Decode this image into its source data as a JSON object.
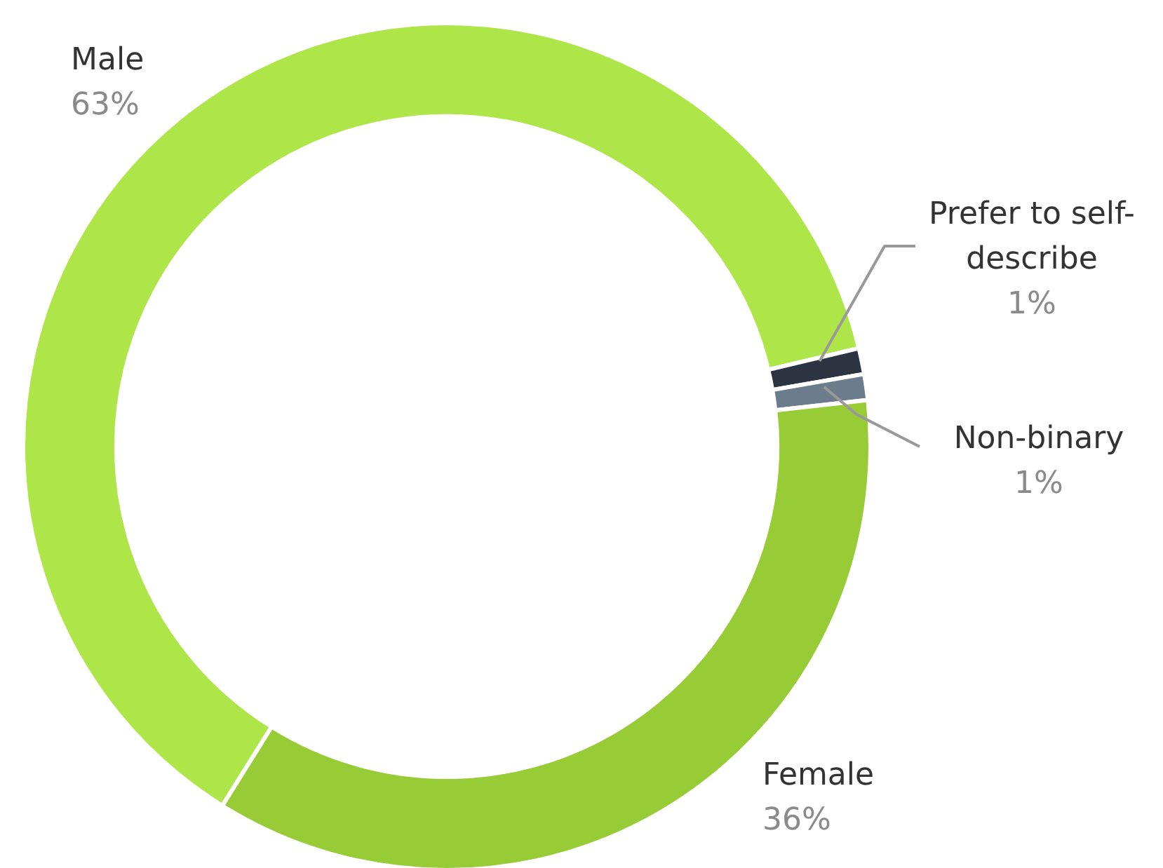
{
  "chart_data": {
    "type": "donut",
    "categories": [
      "Male",
      "Prefer to self-describe",
      "Non-binary",
      "Female"
    ],
    "values": [
      63,
      1,
      1,
      36
    ],
    "value_labels": [
      "63%",
      "1%",
      "1%",
      "36%"
    ],
    "colors": [
      "#aee64a",
      "#2b3440",
      "#6d7c8c",
      "#98cc36"
    ]
  }
}
